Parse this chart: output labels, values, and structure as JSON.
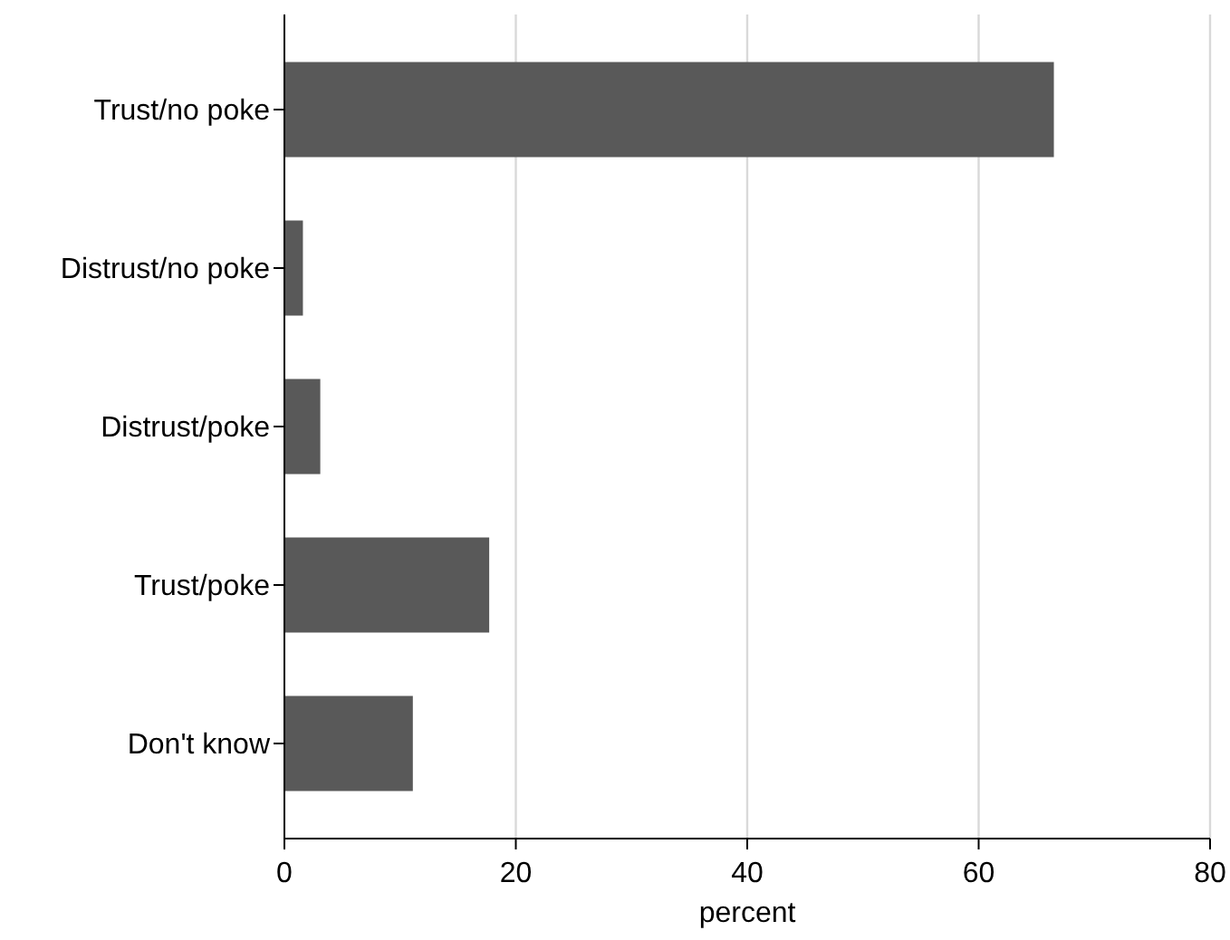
{
  "chart_data": {
    "type": "bar",
    "orientation": "horizontal",
    "xlabel": "percent",
    "categories": [
      "Trust/no poke",
      "Distrust/no poke",
      "Distrust/poke",
      "Trust/poke",
      "Don't know"
    ],
    "values": [
      66.5,
      1.6,
      3.1,
      17.7,
      11.1
    ],
    "color": "#595959",
    "xlim": [
      0,
      80
    ],
    "xticks": [
      0,
      20,
      40,
      60,
      80
    ],
    "grid": "x"
  }
}
